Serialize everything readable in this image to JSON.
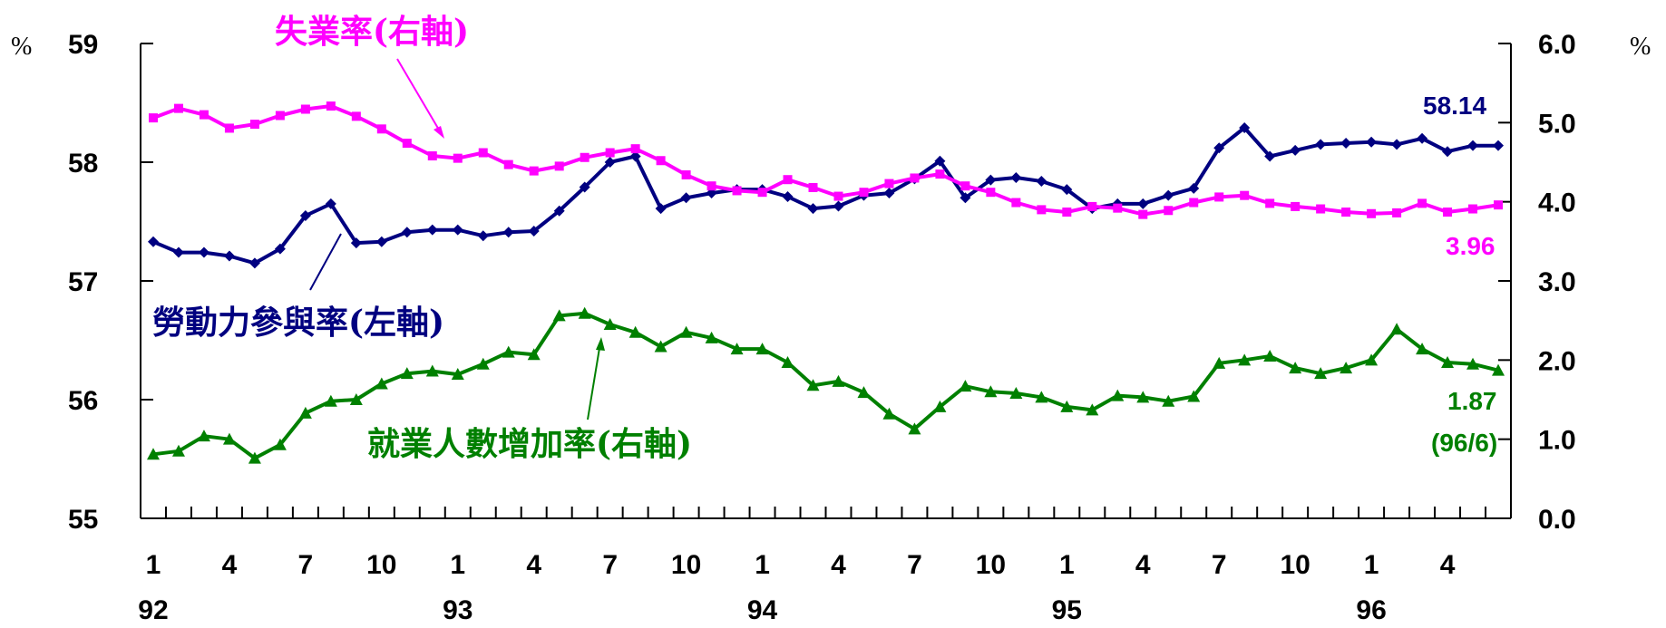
{
  "chart_data": {
    "type": "line",
    "x": [
      "92/1",
      "92/2",
      "92/3",
      "92/4",
      "92/5",
      "92/6",
      "92/7",
      "92/8",
      "92/9",
      "92/10",
      "92/11",
      "92/12",
      "93/1",
      "93/2",
      "93/3",
      "93/4",
      "93/5",
      "93/6",
      "93/7",
      "93/8",
      "93/9",
      "93/10",
      "93/11",
      "93/12",
      "94/1",
      "94/2",
      "94/3",
      "94/4",
      "94/5",
      "94/6",
      "94/7",
      "94/8",
      "94/9",
      "94/10",
      "94/11",
      "94/12",
      "95/1",
      "95/2",
      "95/3",
      "95/4",
      "95/5",
      "95/6",
      "95/7",
      "95/8",
      "95/9",
      "95/10",
      "95/11",
      "95/12",
      "96/1",
      "96/2",
      "96/3",
      "96/4",
      "96/5",
      "96/6"
    ],
    "x_tick_labels": [
      "1",
      "4",
      "7",
      "10",
      "1",
      "4",
      "7",
      "10",
      "1",
      "4",
      "7",
      "10",
      "1",
      "4",
      "7",
      "10",
      "1",
      "4"
    ],
    "year_labels": [
      "92",
      "93",
      "94",
      "95",
      "96"
    ],
    "left_axis": {
      "unit": "%",
      "ylim": [
        55,
        59
      ],
      "ticks": [
        "55",
        "56",
        "57",
        "58",
        "59"
      ]
    },
    "right_axis": {
      "unit": "%",
      "ylim": [
        0.0,
        6.0
      ],
      "ticks": [
        "0.0",
        "1.0",
        "2.0",
        "3.0",
        "4.0",
        "5.0",
        "6.0"
      ]
    },
    "series": [
      {
        "name": "勞動力參與率(左軸)",
        "axis": "left",
        "color": "#000080",
        "marker": "diamond",
        "end_label": "58.14",
        "values": [
          57.33,
          57.24,
          57.24,
          57.21,
          57.15,
          57.27,
          57.55,
          57.65,
          57.32,
          57.33,
          57.41,
          57.43,
          57.43,
          57.38,
          57.41,
          57.42,
          57.59,
          57.79,
          58.0,
          58.05,
          57.61,
          57.7,
          57.74,
          57.77,
          57.77,
          57.71,
          57.61,
          57.63,
          57.72,
          57.74,
          57.86,
          58.01,
          57.7,
          57.85,
          57.87,
          57.84,
          57.77,
          57.61,
          57.65,
          57.65,
          57.72,
          57.78,
          58.12,
          58.29,
          58.05,
          58.1,
          58.15,
          58.16,
          58.17,
          58.15,
          58.2,
          58.09,
          58.14,
          58.14
        ]
      },
      {
        "name": "失業率(右軸)",
        "axis": "right",
        "color": "#ff00ff",
        "marker": "square",
        "end_label": "3.96",
        "values": [
          5.06,
          5.18,
          5.1,
          4.93,
          4.98,
          5.09,
          5.17,
          5.21,
          5.08,
          4.92,
          4.74,
          4.58,
          4.55,
          4.62,
          4.47,
          4.39,
          4.45,
          4.56,
          4.62,
          4.67,
          4.52,
          4.34,
          4.2,
          4.14,
          4.12,
          4.28,
          4.18,
          4.07,
          4.12,
          4.23,
          4.3,
          4.35,
          4.2,
          4.12,
          3.99,
          3.9,
          3.87,
          3.94,
          3.92,
          3.84,
          3.89,
          3.99,
          4.06,
          4.08,
          3.98,
          3.94,
          3.91,
          3.87,
          3.85,
          3.86,
          3.98,
          3.87,
          3.91,
          3.96
        ]
      },
      {
        "name": "就業人數增加率(右軸)",
        "axis": "right",
        "color": "#008000",
        "marker": "triangle",
        "end_label": "1.87",
        "end_sub_label": "(96/6)",
        "values": [
          0.81,
          0.85,
          1.04,
          1.0,
          0.76,
          0.93,
          1.33,
          1.48,
          1.5,
          1.7,
          1.83,
          1.86,
          1.82,
          1.95,
          2.1,
          2.07,
          2.56,
          2.59,
          2.45,
          2.35,
          2.17,
          2.35,
          2.28,
          2.14,
          2.14,
          1.97,
          1.68,
          1.73,
          1.59,
          1.32,
          1.13,
          1.41,
          1.67,
          1.6,
          1.58,
          1.53,
          1.41,
          1.37,
          1.55,
          1.53,
          1.48,
          1.54,
          1.96,
          2.0,
          2.05,
          1.9,
          1.83,
          1.9,
          2.0,
          2.39,
          2.14,
          1.97,
          1.95,
          1.87
        ]
      }
    ]
  }
}
